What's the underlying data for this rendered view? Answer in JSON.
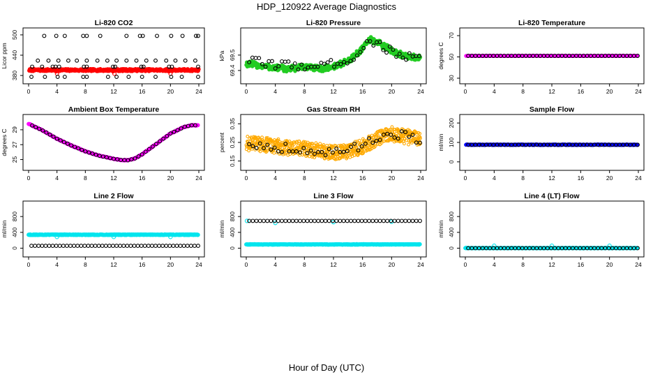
{
  "page": {
    "title": "HDP_120922  Average Diagnostics",
    "xlabel": "Hour of Day (UTC)"
  },
  "colors": {
    "black": "#000000",
    "red": "#ff0000",
    "green": "#22cc22",
    "magenta": "#ff00ff",
    "orange": "#ffaa00",
    "blue": "#0000ff",
    "cyan": "#00e5ee"
  },
  "chart_data": [
    {
      "id": "p1",
      "type": "scatter",
      "title": "Li-820 CO2",
      "ylabel": "Licor ppm",
      "xlim": [
        0,
        24
      ],
      "ylim": [
        372,
        504
      ],
      "xticks": [
        0,
        4,
        8,
        12,
        16,
        20,
        24
      ],
      "yticks": [
        380,
        440,
        500
      ],
      "series": [
        {
          "color": "red",
          "style": "band",
          "fill": true,
          "radius": 2.4,
          "x0": 0.1,
          "x1": 24,
          "step": 0.07,
          "center": [
            [
              0,
              396
            ],
            [
              24,
              396
            ]
          ],
          "spread": 3
        },
        {
          "color": "red",
          "style": "points",
          "radius": 2.4,
          "x": [
            0.3,
            0.5,
            3.9,
            4.0,
            11.9,
            12.1,
            19.8,
            20.0
          ],
          "y": [
            399,
            398,
            392,
            385,
            392,
            385,
            392,
            385
          ]
        },
        {
          "color": "black",
          "style": "points",
          "radius": 2.4,
          "x": [
            2.2,
            3.9,
            5.1,
            7.7,
            8.2,
            10.1,
            13.8,
            15.7,
            16.1,
            18.1,
            20.1,
            21.7,
            23.6,
            23.9,
            0.5,
            1.9,
            3.4,
            3.8,
            4.3,
            7.8,
            8.2,
            11.9,
            12.2,
            15.9,
            16.2,
            19.8,
            20.2,
            23.9,
            1.3,
            2.8,
            4.2,
            5.6,
            6.8,
            8.2,
            9.7,
            11.1,
            12.4,
            13.8,
            15.2,
            16.6,
            17.9,
            19.4,
            20.7,
            22.1,
            23.5,
            0.4,
            2.3,
            4.1,
            5.1,
            7.7,
            8.2,
            11.2,
            12.4,
            14.1,
            16.0,
            17.9,
            20.1,
            21.6,
            23.9
          ],
          "y": [
            497,
            497,
            497,
            497,
            497,
            497,
            497,
            497,
            497,
            497,
            497,
            497,
            497,
            497,
            406,
            406,
            406,
            406,
            406,
            406,
            406,
            406,
            406,
            406,
            406,
            406,
            406,
            406,
            424,
            424,
            424,
            424,
            424,
            424,
            424,
            424,
            424,
            424,
            424,
            424,
            424,
            424,
            424,
            424,
            424,
            376,
            376,
            376,
            376,
            376,
            376,
            376,
            376,
            376,
            376,
            376,
            376,
            376,
            376
          ]
        }
      ]
    },
    {
      "id": "p2",
      "type": "scatter",
      "title": "Li-820 Pressure",
      "ylabel": "kPa",
      "xlim": [
        0,
        24
      ],
      "ylim": [
        69.35,
        69.64
      ],
      "xticks": [
        0,
        4,
        8,
        12,
        16,
        20,
        24
      ],
      "yticks": [
        69.4,
        69.5
      ],
      "series": [
        {
          "color": "green",
          "style": "band",
          "fill": true,
          "radius": 2.2,
          "x0": 0,
          "x1": 24,
          "step": 0.07,
          "center": [
            [
              0,
              69.445
            ],
            [
              2,
              69.43
            ],
            [
              4,
              69.418
            ],
            [
              6,
              69.41
            ],
            [
              8,
              69.425
            ],
            [
              10,
              69.41
            ],
            [
              12,
              69.425
            ],
            [
              14,
              69.46
            ],
            [
              16,
              69.54
            ],
            [
              17,
              69.6
            ],
            [
              18,
              69.585
            ],
            [
              20,
              69.53
            ],
            [
              22,
              69.49
            ],
            [
              24,
              69.48
            ]
          ],
          "spread": 0.02
        },
        {
          "color": "black",
          "style": "curve",
          "radius": 2.4,
          "x0": 0.4,
          "x1": 23.9,
          "step": 0.45,
          "center": [
            [
              0,
              69.47
            ],
            [
              2,
              69.45
            ],
            [
              4,
              69.44
            ],
            [
              6,
              69.435
            ],
            [
              8,
              69.43
            ],
            [
              10,
              69.43
            ],
            [
              12,
              69.445
            ],
            [
              14,
              69.47
            ],
            [
              16,
              69.53
            ],
            [
              17,
              69.6
            ],
            [
              18,
              69.57
            ],
            [
              20,
              69.525
            ],
            [
              22,
              69.49
            ],
            [
              24,
              69.475
            ]
          ],
          "spread": 0.028
        }
      ]
    },
    {
      "id": "p3",
      "type": "scatter",
      "title": "Li-820 Temperature",
      "ylabel": "degrees C",
      "xlim": [
        0,
        24
      ],
      "ylim": [
        30,
        72
      ],
      "xticks": [
        0,
        4,
        8,
        12,
        16,
        20,
        24
      ],
      "yticks": [
        30,
        50,
        70
      ],
      "series": [
        {
          "color": "magenta",
          "style": "band",
          "fill": true,
          "radius": 2.2,
          "x0": 0.1,
          "x1": 23.9,
          "step": 0.07,
          "center": [
            [
              0,
              51
            ],
            [
              24,
              51
            ]
          ],
          "spread": 0.2
        },
        {
          "color": "black",
          "style": "curve",
          "radius": 2.4,
          "x0": 0.4,
          "x1": 23.9,
          "step": 0.5,
          "center": [
            [
              0,
              51
            ],
            [
              24,
              51
            ]
          ],
          "spread": 0
        }
      ]
    },
    {
      "id": "p4",
      "type": "scatter",
      "title": "Ambient Box Temperature",
      "ylabel": "degrees C",
      "xlim": [
        0,
        24
      ],
      "ylim": [
        24.3,
        30.3
      ],
      "xticks": [
        0,
        4,
        8,
        12,
        16,
        20,
        24
      ],
      "yticks": [
        25,
        27,
        29
      ],
      "series": [
        {
          "color": "magenta",
          "style": "band",
          "fill": true,
          "radius": 2.3,
          "x0": 0.0,
          "x1": 23.9,
          "step": 0.07,
          "center": [
            [
              0,
              29.8
            ],
            [
              2,
              28.9
            ],
            [
              4,
              27.8
            ],
            [
              6,
              26.9
            ],
            [
              8,
              26.1
            ],
            [
              10,
              25.5
            ],
            [
              12,
              25.1
            ],
            [
              13,
              24.95
            ],
            [
              14,
              24.9
            ],
            [
              15,
              25.15
            ],
            [
              16,
              25.7
            ],
            [
              18,
              27.1
            ],
            [
              20,
              28.5
            ],
            [
              22,
              29.4
            ],
            [
              23,
              29.6
            ],
            [
              24,
              29.6
            ]
          ],
          "spread": 0.05
        },
        {
          "color": "black",
          "style": "curve",
          "radius": 2.4,
          "x0": 0.5,
          "x1": 23.9,
          "step": 0.5,
          "center": [
            [
              0,
              29.8
            ],
            [
              2,
              28.9
            ],
            [
              4,
              27.8
            ],
            [
              6,
              26.9
            ],
            [
              8,
              26.1
            ],
            [
              10,
              25.5
            ],
            [
              12,
              25.1
            ],
            [
              13,
              24.95
            ],
            [
              14,
              24.9
            ],
            [
              15,
              25.15
            ],
            [
              16,
              25.7
            ],
            [
              18,
              27.1
            ],
            [
              20,
              28.5
            ],
            [
              22,
              29.4
            ],
            [
              23,
              29.6
            ],
            [
              24,
              29.6
            ]
          ],
          "spread": 0
        }
      ]
    },
    {
      "id": "p5",
      "type": "scatter",
      "title": "Gas Stream RH",
      "ylabel": "percent",
      "xlim": [
        0,
        24
      ],
      "ylim": [
        0.13,
        0.37
      ],
      "xticks": [
        0,
        4,
        8,
        12,
        16,
        20,
        24
      ],
      "yticks": [
        0.15,
        0.25,
        0.35
      ],
      "series": [
        {
          "color": "orange",
          "style": "band",
          "fill": false,
          "radius": 1.9,
          "x0": 0,
          "x1": 24,
          "step": 0.035,
          "center": [
            [
              0,
              0.245
            ],
            [
              2,
              0.24
            ],
            [
              4,
              0.23
            ],
            [
              6,
              0.22
            ],
            [
              8,
              0.215
            ],
            [
              10,
              0.205
            ],
            [
              12,
              0.195
            ],
            [
              14,
              0.2
            ],
            [
              16,
              0.23
            ],
            [
              18,
              0.27
            ],
            [
              20,
              0.295
            ],
            [
              22,
              0.28
            ],
            [
              24,
              0.265
            ]
          ],
          "spread": 0.04
        },
        {
          "color": "black",
          "style": "curve",
          "radius": 2.4,
          "x0": 0.4,
          "x1": 23.9,
          "step": 0.5,
          "center": [
            [
              0,
              0.25
            ],
            [
              2,
              0.23
            ],
            [
              4,
              0.225
            ],
            [
              6,
              0.22
            ],
            [
              8,
              0.21
            ],
            [
              10,
              0.2
            ],
            [
              12,
              0.195
            ],
            [
              14,
              0.2
            ],
            [
              16,
              0.24
            ],
            [
              18,
              0.28
            ],
            [
              20,
              0.3
            ],
            [
              22,
              0.285
            ],
            [
              24,
              0.265
            ]
          ],
          "spread": 0.025
        }
      ]
    },
    {
      "id": "p6",
      "type": "scatter",
      "title": "Sample Flow",
      "ylabel": "ml/min",
      "xlim": [
        0,
        24
      ],
      "ylim": [
        -15,
        215
      ],
      "xticks": [
        0,
        4,
        8,
        12,
        16,
        20,
        24
      ],
      "yticks": [
        0,
        100,
        200
      ],
      "series": [
        {
          "color": "blue",
          "style": "band",
          "fill": true,
          "radius": 2.3,
          "x0": 0.1,
          "x1": 23.9,
          "step": 0.07,
          "center": [
            [
              0,
              88
            ],
            [
              24,
              88
            ]
          ],
          "spread": 1.5
        },
        {
          "color": "black",
          "style": "curve",
          "radius": 2.4,
          "x0": 0.4,
          "x1": 23.9,
          "step": 0.5,
          "center": [
            [
              0,
              88
            ],
            [
              24,
              88
            ]
          ],
          "spread": 0
        }
      ]
    },
    {
      "id": "p7",
      "type": "scatter",
      "title": "Line 2 Flow",
      "ylabel": "ml/min",
      "xlim": [
        0,
        24
      ],
      "ylim": [
        -80,
        1050
      ],
      "xticks": [
        0,
        4,
        8,
        12,
        16,
        20,
        24
      ],
      "yticks": [
        0,
        400,
        800
      ],
      "series": [
        {
          "color": "cyan",
          "style": "band",
          "fill": true,
          "radius": 2.4,
          "x0": 0,
          "x1": 23.9,
          "step": 0.06,
          "center": [
            [
              0,
              340
            ],
            [
              24,
              340
            ]
          ],
          "spread": 8
        },
        {
          "color": "cyan",
          "style": "points",
          "radius": 2.6,
          "x": [
            4.0,
            12.0,
            20.0
          ],
          "y": [
            285,
            285,
            285
          ]
        },
        {
          "color": "black",
          "style": "curve",
          "radius": 2.4,
          "x0": 0.4,
          "x1": 23.9,
          "step": 0.5,
          "center": [
            [
              0,
              60
            ],
            [
              24,
              60
            ]
          ],
          "spread": 0
        }
      ]
    },
    {
      "id": "p8",
      "type": "scatter",
      "title": "Line 3 Flow",
      "ylabel": "ml/min",
      "xlim": [
        0,
        24
      ],
      "ylim": [
        -80,
        1050
      ],
      "xticks": [
        0,
        4,
        8,
        12,
        16,
        20,
        24
      ],
      "yticks": [
        0,
        400,
        800
      ],
      "series": [
        {
          "color": "cyan",
          "style": "band",
          "fill": true,
          "radius": 2.4,
          "x0": 0,
          "x1": 23.9,
          "step": 0.06,
          "center": [
            [
              0,
              95
            ],
            [
              24,
              95
            ]
          ],
          "spread": 6
        },
        {
          "color": "cyan",
          "style": "points",
          "radius": 2.6,
          "x": [
            0.1,
            4.0,
            12.0,
            20.0
          ],
          "y": [
            690,
            640,
            660,
            670
          ]
        },
        {
          "color": "black",
          "style": "curve",
          "radius": 2.4,
          "x0": 0.4,
          "x1": 23.9,
          "step": 0.5,
          "center": [
            [
              0,
              690
            ],
            [
              24,
              690
            ]
          ],
          "spread": 0
        }
      ]
    },
    {
      "id": "p9",
      "type": "scatter",
      "title": "Line 4 (LT) Flow",
      "ylabel": "ml/min",
      "xlim": [
        0,
        24
      ],
      "ylim": [
        -80,
        1050
      ],
      "xticks": [
        0,
        4,
        8,
        12,
        16,
        20,
        24
      ],
      "yticks": [
        0,
        400,
        800
      ],
      "series": [
        {
          "color": "cyan",
          "style": "band",
          "fill": true,
          "radius": 2.4,
          "x0": 0,
          "x1": 23.9,
          "step": 0.06,
          "center": [
            [
              0,
              3
            ],
            [
              24,
              3
            ]
          ],
          "spread": 2
        },
        {
          "color": "cyan",
          "style": "points",
          "radius": 2.6,
          "x": [
            0.1,
            4.0,
            12.0,
            20.0
          ],
          "y": [
            5,
            60,
            60,
            60
          ]
        },
        {
          "color": "black",
          "style": "curve",
          "radius": 2.4,
          "x0": 0.4,
          "x1": 23.9,
          "step": 0.5,
          "center": [
            [
              0,
              0
            ],
            [
              24,
              0
            ]
          ],
          "spread": 0
        }
      ]
    }
  ]
}
